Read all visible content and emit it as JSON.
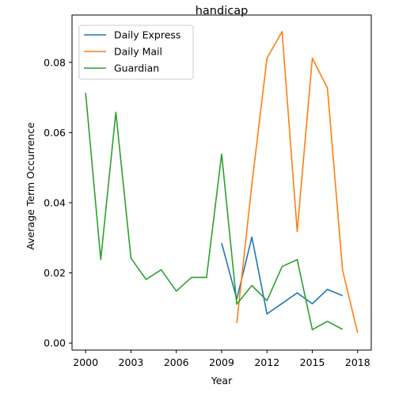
{
  "chart_data": {
    "type": "line",
    "title": "handicap",
    "xlabel": "Year",
    "ylabel": "Average Term Occurrence",
    "xlim": [
      1999.1,
      2018.9
    ],
    "ylim": [
      -0.002,
      0.0935
    ],
    "xticks": [
      2000,
      2003,
      2006,
      2009,
      2012,
      2015,
      2018
    ],
    "xtick_labels": [
      "2000",
      "2003",
      "2006",
      "2009",
      "2012",
      "2015",
      "2018"
    ],
    "yticks": [
      0.0,
      0.02,
      0.04,
      0.06,
      0.08
    ],
    "ytick_labels": [
      "0.00",
      "0.02",
      "0.04",
      "0.06",
      "0.08"
    ],
    "grid": false,
    "legend_position": "top-left",
    "series": [
      {
        "name": "Daily Express",
        "color": "#1f77b4",
        "x": [
          2009,
          2010,
          2011,
          2012,
          2013,
          2014,
          2015,
          2016,
          2017
        ],
        "y": [
          0.0285,
          0.0125,
          0.0302,
          0.0083,
          0.0113,
          0.0143,
          0.0112,
          0.0153,
          0.0135
        ]
      },
      {
        "name": "Daily Mail",
        "color": "#ff7f0e",
        "x": [
          2010,
          2011,
          2012,
          2013,
          2014,
          2015,
          2016,
          2017,
          2018
        ],
        "y": [
          0.0057,
          0.0452,
          0.0812,
          0.0888,
          0.0318,
          0.0812,
          0.0727,
          0.0208,
          0.0029
        ]
      },
      {
        "name": "Guardian",
        "color": "#2ca02c",
        "x": [
          2000,
          2001,
          2002,
          2003,
          2004,
          2005,
          2006,
          2007,
          2008,
          2009,
          2010,
          2011,
          2012,
          2013,
          2014,
          2015,
          2016,
          2017
        ],
        "y": [
          0.0713,
          0.0238,
          0.0658,
          0.0242,
          0.0181,
          0.0209,
          0.0148,
          0.0187,
          0.0187,
          0.0539,
          0.0111,
          0.0164,
          0.0121,
          0.0218,
          0.0238,
          0.0038,
          0.0062,
          0.0039
        ]
      }
    ]
  }
}
